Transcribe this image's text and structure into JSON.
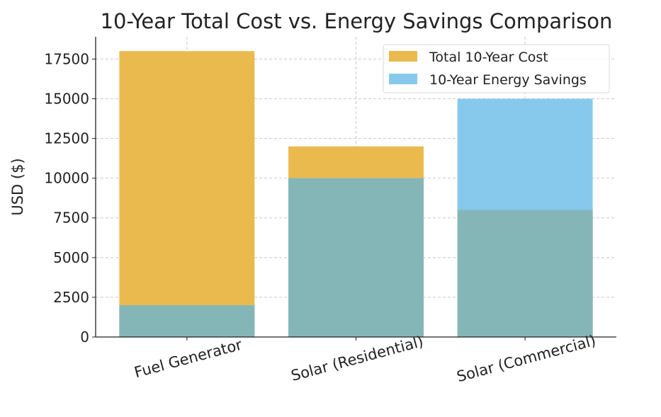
{
  "chart_data": {
    "type": "bar",
    "title": "10-Year Total Cost vs. Energy Savings Comparison",
    "xlabel": "",
    "ylabel": "USD ($)",
    "categories": [
      "Fuel Generator",
      "Solar (Residential)",
      "Solar (Commercial)"
    ],
    "series": [
      {
        "name": "Total 10-Year Cost",
        "values": [
          18000,
          12000,
          8000
        ],
        "color": "#EBBA4E"
      },
      {
        "name": "10-Year Energy Savings",
        "values": [
          2000,
          10000,
          15000
        ],
        "color": "#87C9EC"
      }
    ],
    "overlap_color": "#84B6B8",
    "ylim": [
      0,
      18900
    ],
    "yticks": [
      0,
      2500,
      5000,
      7500,
      10000,
      12500,
      15000,
      17500
    ],
    "grid": true,
    "legend": "top-right",
    "bars_overlaid": true
  }
}
